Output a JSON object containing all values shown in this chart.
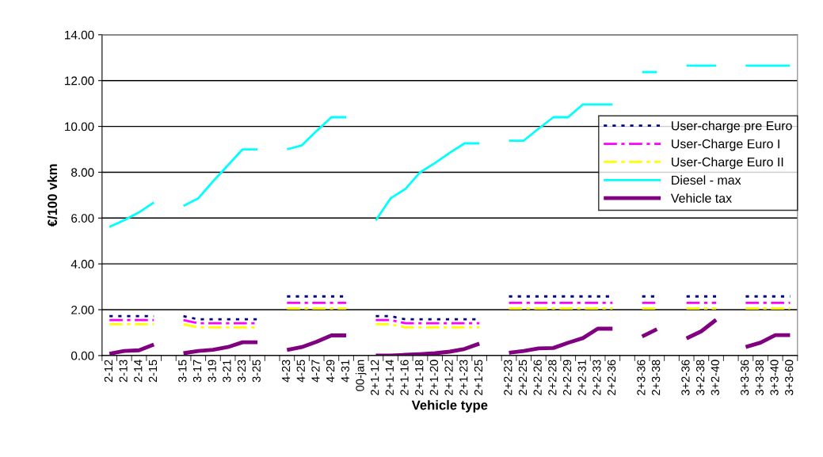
{
  "chart_data": {
    "type": "line",
    "xlabel": "Vehicle type",
    "ylabel": "€/100 vkm",
    "categories": [
      "2-12",
      "2-13",
      "2-14",
      "2-15",
      null,
      "3-15",
      "3-17",
      "3-19",
      "3-21",
      "3-23",
      "3-25",
      null,
      "4-23",
      "4-25",
      "4-27",
      "4-29",
      "4-31",
      "00-jan",
      "2+1-12",
      "2+1-14",
      "2+1-16",
      "2+1-18",
      "2+1-20",
      "2+1-22",
      "2+1-23",
      "2+1-25",
      null,
      "2+2-23",
      "2+2-25",
      "2+2-26",
      "2+2-28",
      "2+2-29",
      "2+2-31",
      "2+2-33",
      "2+2-36",
      null,
      "2+3-36",
      "2+3-38",
      null,
      "3+2-36",
      "3+2-38",
      "3+2-40",
      null,
      "3+3-36",
      "3+3-38",
      "3+3-40",
      "3+3-60"
    ],
    "ylim": [
      0,
      14
    ],
    "yticks": [
      {
        "value": 0,
        "label": "0.00"
      },
      {
        "value": 2,
        "label": "2.00"
      },
      {
        "value": 4,
        "label": "4.00"
      },
      {
        "value": 6,
        "label": "6.00"
      },
      {
        "value": 8,
        "label": "8.00"
      },
      {
        "value": 10,
        "label": "10.00"
      },
      {
        "value": 12,
        "label": "12.00"
      },
      {
        "value": 14,
        "label": "14.00"
      }
    ],
    "grid": "y",
    "legend": "right",
    "series": [
      {
        "name": "User-charge pre Euro",
        "color": "#000080",
        "line_style": "dotted",
        "values": [
          1.72,
          1.72,
          1.72,
          1.72,
          null,
          1.72,
          1.58,
          1.58,
          1.58,
          1.58,
          1.58,
          null,
          2.58,
          2.58,
          2.58,
          2.58,
          2.58,
          null,
          1.72,
          1.72,
          1.58,
          1.58,
          1.58,
          1.58,
          1.58,
          1.58,
          null,
          2.58,
          2.58,
          2.58,
          2.58,
          2.58,
          2.58,
          2.58,
          2.58,
          null,
          2.58,
          2.58,
          null,
          2.58,
          2.58,
          2.58,
          null,
          2.58,
          2.58,
          2.58,
          2.58
        ]
      },
      {
        "name": "User-Charge Euro I",
        "color": "#ff00ff",
        "line_style": "dashed",
        "values": [
          1.55,
          1.55,
          1.55,
          1.55,
          null,
          1.55,
          1.41,
          1.41,
          1.41,
          1.41,
          1.41,
          null,
          2.3,
          2.3,
          2.3,
          2.3,
          2.3,
          null,
          1.55,
          1.55,
          1.41,
          1.41,
          1.41,
          1.41,
          1.41,
          1.41,
          null,
          2.3,
          2.3,
          2.3,
          2.3,
          2.3,
          2.3,
          2.3,
          2.3,
          null,
          2.3,
          2.3,
          null,
          2.3,
          2.3,
          2.3,
          null,
          2.3,
          2.3,
          2.3,
          2.3
        ]
      },
      {
        "name": "User-Charge Euro II",
        "color": "#ffff00",
        "line_style": "dashed",
        "values": [
          1.37,
          1.37,
          1.37,
          1.37,
          null,
          1.37,
          1.23,
          1.23,
          1.23,
          1.23,
          1.23,
          null,
          2.06,
          2.06,
          2.06,
          2.06,
          2.06,
          null,
          1.37,
          1.37,
          1.23,
          1.23,
          1.23,
          1.23,
          1.23,
          1.23,
          null,
          2.06,
          2.06,
          2.06,
          2.06,
          2.06,
          2.06,
          2.06,
          2.06,
          null,
          2.06,
          2.06,
          null,
          2.06,
          2.06,
          2.06,
          null,
          2.06,
          2.06,
          2.06,
          2.06
        ]
      },
      {
        "name": "Diesel - max",
        "color": "#00ffff",
        "line_style": "solid",
        "values": [
          5.61,
          5.91,
          6.25,
          6.68,
          null,
          6.53,
          6.86,
          7.6,
          8.3,
          9.0,
          9.0,
          null,
          9.0,
          9.17,
          9.8,
          10.4,
          10.4,
          null,
          5.9,
          6.86,
          7.27,
          8.0,
          8.4,
          8.85,
          9.26,
          9.26,
          null,
          9.38,
          9.38,
          9.9,
          10.4,
          10.4,
          10.96,
          10.96,
          10.96,
          null,
          12.37,
          12.37,
          null,
          12.65,
          12.65,
          12.65,
          null,
          12.65,
          12.65,
          12.65,
          12.65
        ]
      },
      {
        "name": "Vehicle tax",
        "color": "#800080",
        "line_style": "solid",
        "values": [
          0.08,
          0.2,
          0.23,
          0.48,
          null,
          0.1,
          0.2,
          0.25,
          0.37,
          0.58,
          0.58,
          null,
          0.24,
          0.37,
          0.6,
          0.88,
          0.88,
          null,
          0.0,
          0.0,
          0.03,
          0.06,
          0.1,
          0.17,
          0.29,
          0.52,
          null,
          0.12,
          0.2,
          0.31,
          0.33,
          0.56,
          0.76,
          1.17,
          1.17,
          null,
          0.83,
          1.15,
          null,
          0.75,
          1.06,
          1.56,
          null,
          0.37,
          0.56,
          0.89,
          0.89
        ]
      }
    ]
  }
}
